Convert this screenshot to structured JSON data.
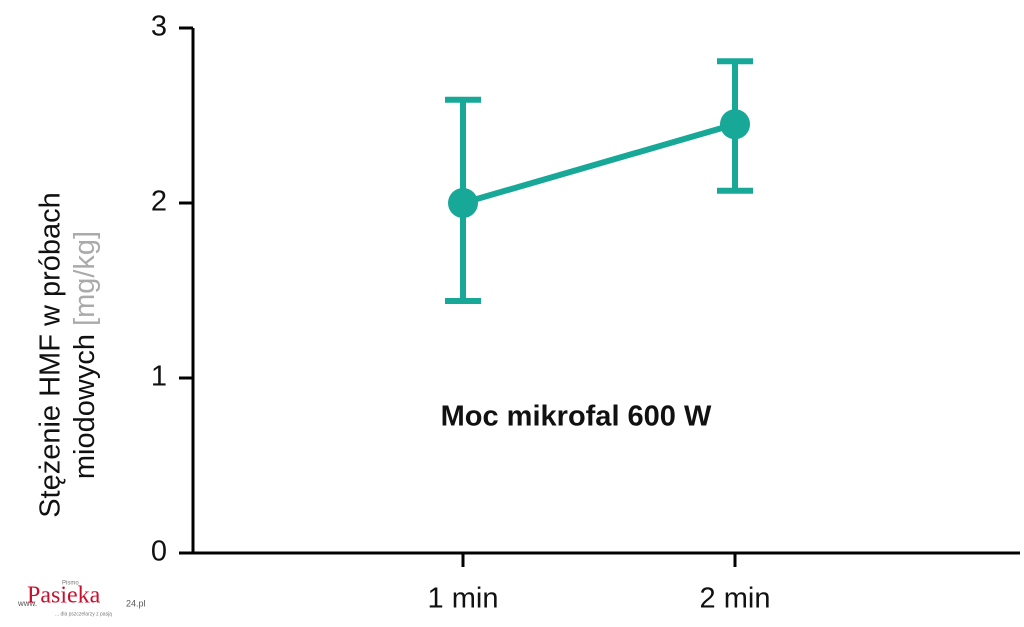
{
  "chart_data": {
    "type": "line",
    "y_label": {
      "line1": "Stężenie HMF w próbach",
      "line2": "miodowych",
      "unit": "[mg/kg]"
    },
    "annotation": "Moc mikrofal 600 W",
    "categories": [
      "1 min",
      "2 min"
    ],
    "series": [
      {
        "name": "Moc mikrofal 600 W",
        "color": "#17a898",
        "values": [
          2.0,
          2.45
        ],
        "error_low": [
          0.56,
          0.38
        ],
        "error_high": [
          0.59,
          0.36
        ]
      }
    ],
    "ylim": [
      0,
      3
    ],
    "yticks": [
      0,
      1,
      2,
      3
    ]
  },
  "watermark": {
    "prefix": "www.",
    "brand": "Pasieka",
    "suffix": "24.pl",
    "top": "Pismo",
    "tagline": "... dla pszczelarzy z pasją"
  }
}
